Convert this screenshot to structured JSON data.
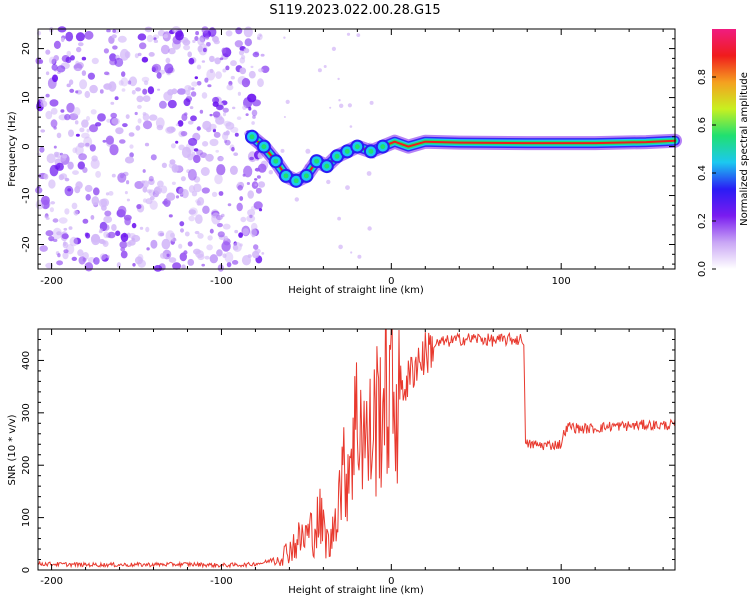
{
  "title": "S119.2023.022.00.28.G15",
  "chart_data": [
    {
      "type": "heatmap",
      "name": "spectrogram",
      "xlabel": "Height of straight line (km)",
      "ylabel": "Frequency (Hz)",
      "xlim": [
        -208,
        167
      ],
      "ylim": [
        -25,
        24
      ],
      "x_ticks": [
        -200,
        -100,
        0,
        100
      ],
      "x_tick_labels": [
        "-200",
        "-100",
        "0",
        "100"
      ],
      "y_ticks": [
        -20,
        -10,
        0,
        10,
        20
      ],
      "y_tick_labels": [
        "-20",
        "-10",
        "0",
        "10",
        "20"
      ],
      "colorbar": {
        "label": "Normalized spectral amplitude",
        "range": [
          0,
          1
        ],
        "ticks": [
          0.0,
          0.2,
          0.4,
          0.6,
          0.8
        ],
        "tick_labels": [
          "0.0",
          "0.2",
          "0.4",
          "0.6",
          "0.8"
        ],
        "colors": [
          "#ffffff",
          "#c9a6f5",
          "#7a1cf0",
          "#2a1cf5",
          "#1cc8f0",
          "#20e070",
          "#c8f020",
          "#f5a020",
          "#f01c1c",
          "#f01c80"
        ]
      },
      "noise_region_x": [
        -208,
        -80
      ],
      "ridge": [
        {
          "x": -82,
          "f": 2
        },
        {
          "x": -75,
          "f": 0
        },
        {
          "x": -68,
          "f": -3
        },
        {
          "x": -62,
          "f": -6
        },
        {
          "x": -56,
          "f": -7
        },
        {
          "x": -50,
          "f": -6
        },
        {
          "x": -44,
          "f": -3
        },
        {
          "x": -38,
          "f": -4
        },
        {
          "x": -32,
          "f": -2
        },
        {
          "x": -26,
          "f": -1
        },
        {
          "x": -20,
          "f": 0
        },
        {
          "x": -12,
          "f": -1
        },
        {
          "x": -5,
          "f": 0
        },
        {
          "x": 2,
          "f": 1
        },
        {
          "x": 10,
          "f": 0
        },
        {
          "x": 20,
          "f": 1
        },
        {
          "x": 40,
          "f": 0.8
        },
        {
          "x": 80,
          "f": 0.7
        },
        {
          "x": 120,
          "f": 0.7
        },
        {
          "x": 150,
          "f": 0.9
        },
        {
          "x": 167,
          "f": 1.2
        }
      ]
    },
    {
      "type": "line",
      "name": "snr",
      "xlabel": "Height of straight line (km)",
      "ylabel": "SNR (10 * v/v)",
      "xlim": [
        -208,
        167
      ],
      "ylim": [
        0,
        460
      ],
      "x_ticks": [
        -200,
        -100,
        0,
        100
      ],
      "x_tick_labels": [
        "-200",
        "-100",
        "0",
        "100"
      ],
      "y_ticks": [
        0,
        100,
        200,
        300,
        400
      ],
      "y_tick_labels": [
        "0",
        "100",
        "200",
        "300",
        "400"
      ],
      "color": "#e8392e",
      "series": [
        {
          "name": "SNR",
          "x": [
            -208,
            -180,
            -150,
            -120,
            -100,
            -85,
            -75,
            -65,
            -55,
            -48,
            -42,
            -36,
            -30,
            -26,
            -22,
            -18,
            -14,
            -10,
            -6,
            -2,
            2,
            6,
            10,
            14,
            18,
            22,
            26,
            30,
            40,
            50,
            60,
            70,
            78,
            79,
            80,
            90,
            100,
            102,
            105,
            110,
            120,
            130,
            140,
            150,
            160,
            167
          ],
          "y": [
            12,
            10,
            10,
            11,
            9,
            10,
            14,
            25,
            55,
            70,
            95,
            40,
            170,
            190,
            270,
            300,
            230,
            280,
            320,
            340,
            330,
            350,
            360,
            395,
            405,
            420,
            430,
            435,
            440,
            442,
            438,
            440,
            440,
            235,
            240,
            238,
            240,
            265,
            275,
            270,
            270,
            275,
            275,
            277,
            276,
            278
          ]
        }
      ]
    }
  ]
}
